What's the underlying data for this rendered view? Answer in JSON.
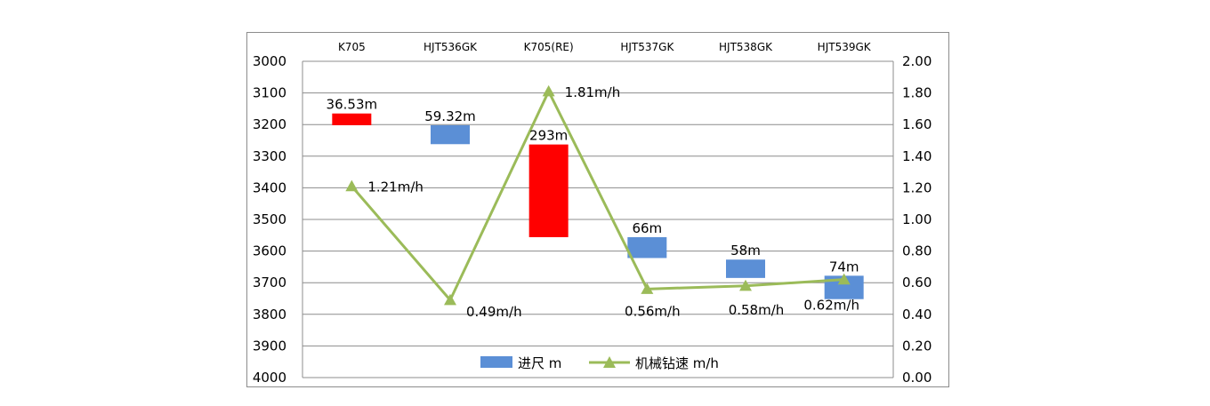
{
  "chart_data": {
    "type": "bar+line",
    "categories": [
      "K705",
      "HJT536GK",
      "K705(RE)",
      "HJT537GK",
      "HJT538GK",
      "HJT539GK"
    ],
    "series": [
      {
        "name": "进尺 m",
        "type": "floating-bar",
        "axis": "left",
        "top": [
          3165,
          3202,
          3263,
          3556,
          3627,
          3678
        ],
        "bottom": [
          3202,
          3262,
          3556,
          3622,
          3685,
          3752
        ],
        "labels": [
          "36.53m",
          "59.32m",
          "293m",
          "66m",
          "58m",
          "74m"
        ],
        "colors": [
          "#ff0000",
          "#5b8fd6",
          "#ff0000",
          "#5b8fd6",
          "#5b8fd6",
          "#5b8fd6"
        ]
      },
      {
        "name": "机械钻速 m/h",
        "type": "line",
        "axis": "right",
        "values": [
          1.21,
          0.49,
          1.81,
          0.56,
          0.58,
          0.62
        ],
        "labels": [
          "1.21m/h",
          "0.49m/h",
          "1.81m/h",
          "0.56m/h",
          "0.58m/h",
          "0.62m/h"
        ],
        "color": "#9bbb59"
      }
    ],
    "left_axis": {
      "min": 3000,
      "max": 4000,
      "step": 100,
      "reversed": true,
      "ticks": [
        "3000",
        "3100",
        "3200",
        "3300",
        "3400",
        "3500",
        "3600",
        "3700",
        "3800",
        "3900",
        "4000"
      ]
    },
    "right_axis": {
      "min": 0,
      "max": 2,
      "step": 0.2,
      "ticks": [
        "2.00",
        "1.80",
        "1.60",
        "1.40",
        "1.20",
        "1.00",
        "0.80",
        "0.60",
        "0.40",
        "0.20",
        "0.00"
      ]
    },
    "grid": true,
    "legend": "bottom-center",
    "bar_color": "#5b8fd6",
    "highlight_color": "#ff0000",
    "line_color": "#9bbb59"
  }
}
